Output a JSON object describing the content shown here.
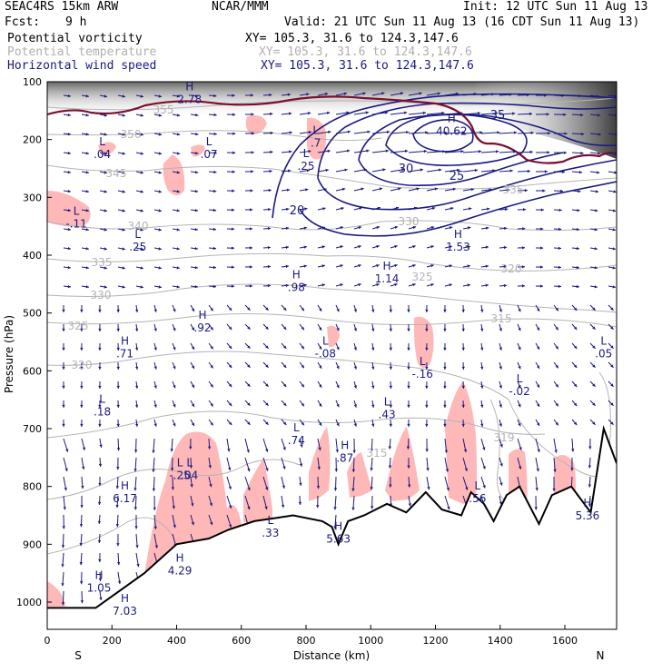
{
  "header": {
    "model": "SEAC4RS 15km ARW",
    "org": "NCAR/MMM",
    "init": "Init: 12 UTC Sun 11 Aug 13",
    "fcst_label": "Fcst:",
    "fcst_value": "9 h",
    "valid": "Valid: 21 UTC Sun 11 Aug 13 (16 CDT Sun 11 Aug 13)",
    "fields": [
      {
        "name": "Potential vorticity",
        "xy": "XY= 105.3, 31.6 to 124.3,147.6"
      },
      {
        "name": "Potential temperature",
        "xy": "XY= 105.3, 31.6 to 124.3,147.6"
      },
      {
        "name": "Horizontal wind speed",
        "xy": "XY= 105.3, 31.6 to 124.3,147.6"
      }
    ]
  },
  "colors": {
    "pv": "#ffb8b8",
    "theta": "#b4b4b4",
    "wind": "#1a1a80",
    "tropopause": "#7a1030",
    "terrain": "#000000"
  },
  "chart_data": {
    "type": "cross-section",
    "xlabel": "Distance (km)",
    "ylabel": "Pressure (hPa)",
    "xlim": [
      0,
      1760
    ],
    "ylim": [
      1050,
      100
    ],
    "x_ticks": [
      0,
      200,
      400,
      600,
      800,
      1000,
      1200,
      1400,
      1600
    ],
    "y_ticks": [
      100,
      200,
      300,
      400,
      500,
      600,
      700,
      800,
      900,
      1000
    ],
    "end_labels": {
      "left": "S",
      "right": "N"
    },
    "terrain": [
      [
        0,
        1010
      ],
      [
        150,
        1010
      ],
      [
        300,
        950
      ],
      [
        400,
        900
      ],
      [
        500,
        890
      ],
      [
        560,
        875
      ],
      [
        640,
        860
      ],
      [
        700,
        855
      ],
      [
        760,
        850
      ],
      [
        850,
        860
      ],
      [
        880,
        870
      ],
      [
        900,
        900
      ],
      [
        930,
        860
      ],
      [
        980,
        850
      ],
      [
        1050,
        830
      ],
      [
        1110,
        845
      ],
      [
        1170,
        810
      ],
      [
        1220,
        840
      ],
      [
        1280,
        850
      ],
      [
        1310,
        810
      ],
      [
        1350,
        830
      ],
      [
        1380,
        860
      ],
      [
        1420,
        815
      ],
      [
        1460,
        800
      ],
      [
        1520,
        865
      ],
      [
        1560,
        815
      ],
      [
        1620,
        800
      ],
      [
        1680,
        845
      ],
      [
        1720,
        700
      ],
      [
        1760,
        760
      ]
    ],
    "wind_speed_contours": [
      {
        "value": 20,
        "label": "20"
      },
      {
        "value": 25,
        "label": "25"
      },
      {
        "value": 30,
        "label": "30"
      },
      {
        "value": 35,
        "label": "35"
      },
      {
        "value": 40.62,
        "label": "40.62"
      }
    ],
    "theta_labels": [
      "355",
      "350",
      "345",
      "340",
      "335",
      "330",
      "325",
      "320",
      "315",
      "335",
      "330",
      "325",
      "320",
      "315",
      "319"
    ],
    "pv_extrema": [
      {
        "type": "L",
        "value": "-.11",
        "x": 90,
        "p": 330
      },
      {
        "type": "L",
        "value": ".04",
        "x": 170,
        "p": 210
      },
      {
        "type": "L",
        "value": ".07",
        "x": 500,
        "p": 210
      },
      {
        "type": "H",
        "value": "2.78",
        "x": 440,
        "p": 115
      },
      {
        "type": "H",
        "value": "40.62",
        "x": 1250,
        "p": 170
      },
      {
        "type": "L",
        "value": ".25",
        "x": 280,
        "p": 370
      },
      {
        "type": "L",
        "value": ".25",
        "x": 800,
        "p": 230
      },
      {
        "type": "L",
        "value": ".7",
        "x": 830,
        "p": 190
      },
      {
        "type": "H",
        "value": "1.53",
        "x": 1270,
        "p": 370
      },
      {
        "type": "H",
        "value": "1.14",
        "x": 1050,
        "p": 425
      },
      {
        "type": "H",
        "value": ".98",
        "x": 770,
        "p": 440
      },
      {
        "type": "H",
        "value": ".92",
        "x": 480,
        "p": 510
      },
      {
        "type": "H",
        "value": ".71",
        "x": 240,
        "p": 555
      },
      {
        "type": "L",
        "value": "-.08",
        "x": 860,
        "p": 555
      },
      {
        "type": "L",
        "value": ".05",
        "x": 1720,
        "p": 555
      },
      {
        "type": "L",
        "value": "-.16",
        "x": 1160,
        "p": 590
      },
      {
        "type": "L",
        "value": "-.02",
        "x": 1460,
        "p": 620
      },
      {
        "type": "L",
        "value": ".18",
        "x": 170,
        "p": 655
      },
      {
        "type": "L",
        "value": ".43",
        "x": 1050,
        "p": 660
      },
      {
        "type": "L",
        "value": ".74",
        "x": 770,
        "p": 705
      },
      {
        "type": "H",
        "value": ".87",
        "x": 920,
        "p": 735
      },
      {
        "type": "L",
        "value": "-.25",
        "x": 410,
        "p": 765
      },
      {
        "type": "L",
        "value": ".04",
        "x": 440,
        "p": 765
      },
      {
        "type": "H",
        "value": "6.17",
        "x": 240,
        "p": 805
      },
      {
        "type": "L",
        "value": ".56",
        "x": 1330,
        "p": 805
      },
      {
        "type": "H",
        "value": "5.36",
        "x": 1670,
        "p": 835
      },
      {
        "type": "L",
        "value": ".33",
        "x": 690,
        "p": 865
      },
      {
        "type": "H",
        "value": "5.63",
        "x": 900,
        "p": 875
      },
      {
        "type": "H",
        "value": "4.29",
        "x": 410,
        "p": 930
      },
      {
        "type": "H",
        "value": "1.05",
        "x": 160,
        "p": 960
      },
      {
        "type": "H",
        "value": "7.03",
        "x": 240,
        "p": 1000
      }
    ]
  }
}
